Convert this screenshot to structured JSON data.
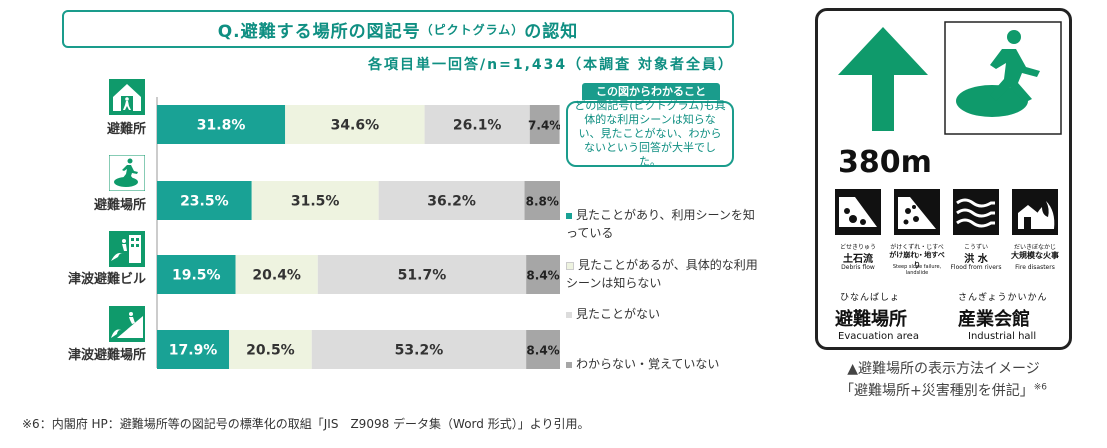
{
  "header": {
    "title_main": "Q.避難する場所の図記号",
    "title_small": "（ピクトグラム）",
    "title_end": "の認知",
    "subtitle": "各項目単一回答/n=1,434（本調査 対象者全員）"
  },
  "note": {
    "head": "この図からわかること",
    "body": "どの図記号(ピクトグラム)も具体的な利用シーンは知らない、見たことがない、わからないという回答が大半でした。"
  },
  "chart_data": {
    "type": "bar",
    "orientation": "horizontal-stacked-100",
    "categories": [
      "避難所",
      "避難場所",
      "津波避難ビル",
      "津波避難場所"
    ],
    "series": [
      {
        "name": "見たことがあり、利用シーンを知っている",
        "values": [
          31.8,
          23.5,
          19.5,
          17.9
        ],
        "color": "#19a295"
      },
      {
        "name": "見たことがあるが、具体的な利用シーンは知らない",
        "values": [
          34.6,
          31.5,
          20.4,
          20.5
        ],
        "color": "#eef3e0"
      },
      {
        "name": "見たことがない",
        "values": [
          26.1,
          36.2,
          51.7,
          53.2
        ],
        "color": "#dcdcdc"
      },
      {
        "name": "わからない・覚えていない",
        "values": [
          7.4,
          8.8,
          8.4,
          8.4
        ],
        "color": "#a6a6a6"
      }
    ],
    "value_labels": [
      [
        "31.8%",
        "34.6%",
        "26.1%",
        "7.4%"
      ],
      [
        "23.5%",
        "31.5%",
        "36.2%",
        "8.8%"
      ],
      [
        "19.5%",
        "20.4%",
        "51.7%",
        "8.4%"
      ],
      [
        "17.9%",
        "20.5%",
        "53.2%",
        "8.4%"
      ]
    ],
    "xlim": [
      0,
      100
    ]
  },
  "colors": {
    "accent": "#1a9c8c",
    "pict_green": "#0f9a6b"
  },
  "sign": {
    "distance": "380m",
    "hazards": [
      {
        "ruby": "どせきりゅう",
        "name": "土石流",
        "en": "Debris flow",
        "icon": "debris-flow-icon"
      },
      {
        "ruby": "がけくずれ・じすべり",
        "name": "がけ崩れ・地すべり",
        "en": "Steep slope failure, landslide",
        "icon": "landslide-icon"
      },
      {
        "ruby": "こうずい",
        "name": "洪 水",
        "en": "Flood from rivers",
        "icon": "flood-icon"
      },
      {
        "ruby": "だいきぼなかじ",
        "name": "大規模な火事",
        "en": "Fire disasters",
        "icon": "fire-icon"
      }
    ],
    "left_ruby": "ひなんばしょ",
    "left_jp": "避難場所",
    "left_en": "Evacuation area",
    "right_ruby": "さんぎょうかいかん",
    "right_jp": "産業会館",
    "right_en": "Industrial hall"
  },
  "caption": {
    "line1": "▲避難場所の表示方法イメージ",
    "line2": "「避難場所+災害種別を併記」",
    "line2_sup": "※6"
  },
  "footnote": "※6：内閣府 HP：避難場所等の図記号の標準化の取組「JIS　Z9098 データ集（Word 形式）」より引用。"
}
